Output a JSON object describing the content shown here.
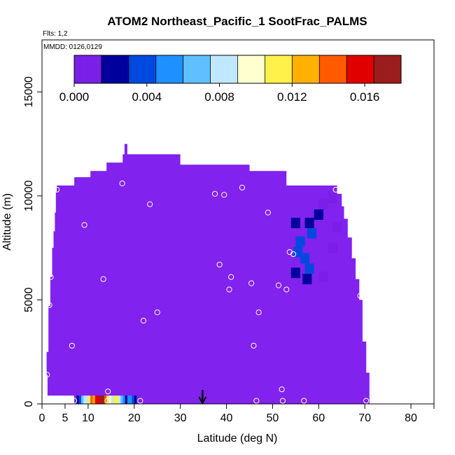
{
  "chart_data": {
    "type": "heatmap",
    "title": "ATOM2 Northeast_Pacific_1 SootFrac_PALMS",
    "flights_note": "Flts: 1,2",
    "date_note": "MMDD: 0126,0129",
    "xlabel": "Latitude (deg N)",
    "ylabel": "Altitude (m)",
    "xlim": [
      0,
      85
    ],
    "ylim": [
      0,
      17500
    ],
    "x_ticks": [
      0,
      5,
      10,
      20,
      30,
      40,
      50,
      60,
      70,
      80
    ],
    "x_tick_labels": [
      "0",
      "5",
      "10",
      "20",
      "30",
      "40",
      "50",
      "60",
      "70",
      "80"
    ],
    "y_ticks": [
      0,
      5000,
      10000,
      15000
    ],
    "y_tick_labels": [
      "0",
      "5000",
      "10000",
      "15000"
    ],
    "colorbar": {
      "range": [
        0.0,
        0.018
      ],
      "tick_values": [
        0.0,
        0.004,
        0.008,
        0.012,
        0.016
      ],
      "tick_labels": [
        "0.000",
        "0.004",
        "0.008",
        "0.012",
        "0.016"
      ],
      "colors": [
        "#7a1fe8",
        "#00009c",
        "#0049e0",
        "#1e90ff",
        "#60c0ff",
        "#bfe8ff",
        "#ffffd0",
        "#fff04a",
        "#ffb000",
        "#ff5a00",
        "#e00000",
        "#9b1c1c"
      ]
    },
    "background_value": 0.0,
    "background_color": "#8122ee",
    "coverage_outline": [
      [
        7.0,
        0
      ],
      [
        7.0,
        400
      ],
      [
        1.2,
        400
      ],
      [
        1.2,
        1400
      ],
      [
        1.0,
        1400
      ],
      [
        1.0,
        2500
      ],
      [
        1.4,
        2500
      ],
      [
        1.4,
        4700
      ],
      [
        1.8,
        4700
      ],
      [
        1.8,
        6100
      ],
      [
        2.2,
        6100
      ],
      [
        2.2,
        7500
      ],
      [
        2.5,
        7500
      ],
      [
        2.5,
        8300
      ],
      [
        2.8,
        8300
      ],
      [
        2.8,
        9200
      ],
      [
        3.0,
        9200
      ],
      [
        3.0,
        10200
      ],
      [
        3.2,
        10200
      ],
      [
        3.2,
        10500
      ],
      [
        7.0,
        10500
      ],
      [
        7.0,
        10900
      ],
      [
        10.5,
        10900
      ],
      [
        10.5,
        11200
      ],
      [
        14.0,
        11200
      ],
      [
        14.0,
        11600
      ],
      [
        17.5,
        11600
      ],
      [
        17.5,
        12000
      ],
      [
        17.9,
        12000
      ],
      [
        17.9,
        12500
      ],
      [
        18.5,
        12500
      ],
      [
        18.5,
        12000
      ],
      [
        30.0,
        12000
      ],
      [
        30.0,
        11500
      ],
      [
        45.0,
        11500
      ],
      [
        45.0,
        11200
      ],
      [
        53.0,
        11200
      ],
      [
        53.0,
        10500
      ],
      [
        64.0,
        10500
      ],
      [
        64.0,
        10100
      ],
      [
        65.0,
        10100
      ],
      [
        65.0,
        9500
      ],
      [
        65.5,
        9500
      ],
      [
        65.5,
        8900
      ],
      [
        66.3,
        8900
      ],
      [
        66.3,
        8000
      ],
      [
        67.2,
        8000
      ],
      [
        67.2,
        7000
      ],
      [
        68.0,
        7000
      ],
      [
        68.0,
        6000
      ],
      [
        68.8,
        6000
      ],
      [
        68.8,
        5000
      ],
      [
        69.5,
        5000
      ],
      [
        69.5,
        3000
      ],
      [
        70.3,
        3000
      ],
      [
        70.3,
        1500
      ],
      [
        71.0,
        1500
      ],
      [
        71.0,
        0
      ]
    ],
    "enhanced_cells": [
      {
        "lat": 63.0,
        "alt": 9900,
        "value": 0.0008
      },
      {
        "lat": 61.0,
        "alt": 9600,
        "value": 0.0014
      },
      {
        "lat": 60.0,
        "alt": 9100,
        "value": 0.0022
      },
      {
        "lat": 58.0,
        "alt": 8700,
        "value": 0.0026
      },
      {
        "lat": 55.0,
        "alt": 8700,
        "value": 0.0024
      },
      {
        "lat": 58.5,
        "alt": 8200,
        "value": 0.003
      },
      {
        "lat": 56.0,
        "alt": 7800,
        "value": 0.0036
      },
      {
        "lat": 55.5,
        "alt": 7300,
        "value": 0.0044
      },
      {
        "lat": 57.0,
        "alt": 7000,
        "value": 0.0034
      },
      {
        "lat": 58.0,
        "alt": 6500,
        "value": 0.003
      },
      {
        "lat": 55.0,
        "alt": 6300,
        "value": 0.0024
      },
      {
        "lat": 57.5,
        "alt": 6000,
        "value": 0.0022
      },
      {
        "lat": 61.0,
        "alt": 6100,
        "value": 0.0014
      },
      {
        "lat": 63.0,
        "alt": 7500,
        "value": 0.001
      },
      {
        "lat": 64.0,
        "alt": 8500,
        "value": 0.0008
      }
    ],
    "surface_strip": {
      "lat_range": [
        7.0,
        21.0
      ],
      "alt_range": [
        0,
        400
      ],
      "values": [
        0.0005,
        0.0015,
        0.0035,
        0.0065,
        0.0075,
        0.0085,
        0.011,
        0.0135,
        0.0125,
        0.0155,
        0.015,
        0.0175,
        0.0165,
        0.0145,
        0.0115,
        0.0095,
        0.0085,
        0.0105,
        0.0115,
        0.0085,
        0.0065,
        0.0045,
        0.0025,
        0.0045,
        0.0055,
        0.0035,
        0.0015,
        0.0005
      ]
    },
    "sample_points": [
      [
        0.8,
        150
      ],
      [
        1.1,
        1400
      ],
      [
        1.6,
        4750
      ],
      [
        1.9,
        6100
      ],
      [
        3.2,
        10300
      ],
      [
        6.5,
        2800
      ],
      [
        7.0,
        150
      ],
      [
        9.2,
        8600
      ],
      [
        13.3,
        6000
      ],
      [
        14.3,
        600
      ],
      [
        14.2,
        150
      ],
      [
        17.4,
        10600
      ],
      [
        21.3,
        150
      ],
      [
        22.0,
        4000
      ],
      [
        23.4,
        9600
      ],
      [
        25.0,
        4400
      ],
      [
        37.5,
        10100
      ],
      [
        38.5,
        6700
      ],
      [
        39.5,
        10050
      ],
      [
        40.6,
        5500
      ],
      [
        41.0,
        6100
      ],
      [
        43.4,
        10400
      ],
      [
        45.4,
        5800
      ],
      [
        45.9,
        2800
      ],
      [
        46.5,
        150
      ],
      [
        47.0,
        4400
      ],
      [
        49.0,
        9200
      ],
      [
        51.3,
        5700
      ],
      [
        52.0,
        700
      ],
      [
        52.2,
        150
      ],
      [
        53.0,
        5500
      ],
      [
        53.7,
        7300
      ],
      [
        54.5,
        7200
      ],
      [
        56.8,
        150
      ],
      [
        63.7,
        10300
      ],
      [
        69.0,
        5200
      ],
      [
        70.3,
        150
      ]
    ],
    "arrow_marker_lat": 34.8
  }
}
